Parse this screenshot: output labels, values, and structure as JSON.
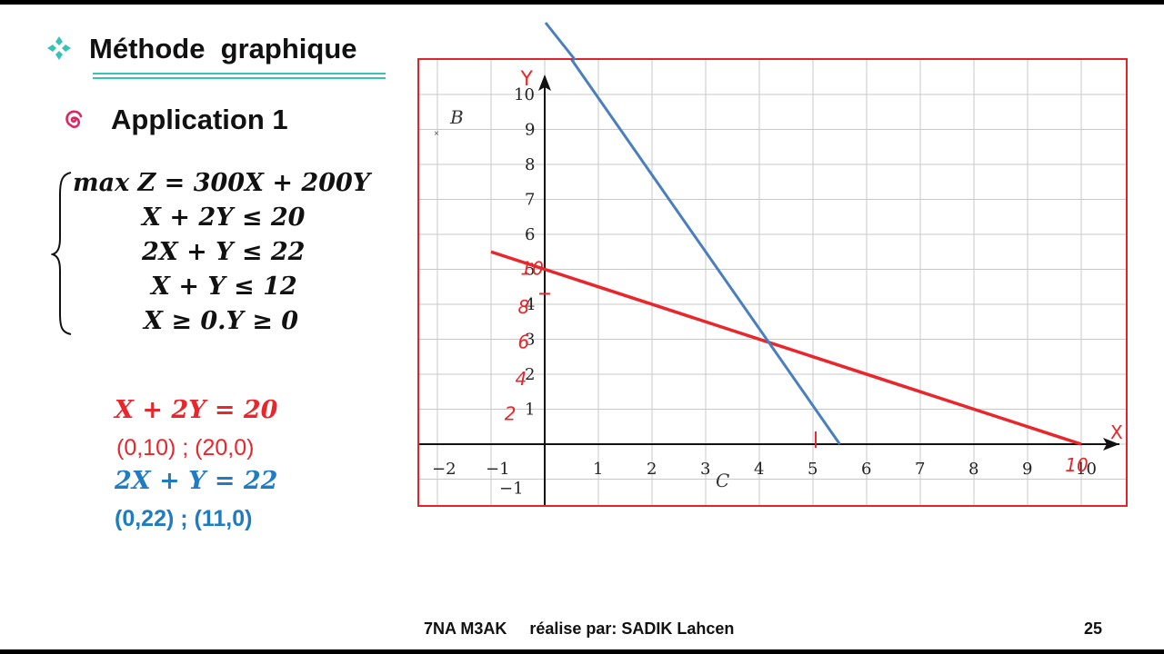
{
  "slide": {
    "title": "Méthode  graphique",
    "title_icon": "diamond-bullet-icon",
    "application_label": "Application 1",
    "application_icon": "swirl-bullet-icon",
    "accent_color": "#39c2b8",
    "red_color": "#e8262b",
    "blue_color": "#1f7cc2"
  },
  "system": {
    "objective": "max Z = 300X + 200Y",
    "constraints": [
      "X + 2Y ≤ 20",
      "2X + Y ≤ 22",
      "X + Y ≤ 12",
      "X ≥ 0.Y ≥ 0"
    ]
  },
  "lines": [
    {
      "equation": "X + 2Y = 20",
      "points": "(0,10) ; (20,0)",
      "color": "#e8262b"
    },
    {
      "equation": "2X + Y = 22",
      "points": "(0,22) ; (11,0)",
      "color": "#1f7cc2"
    }
  ],
  "chart_data": {
    "type": "line",
    "xlim": [
      -2,
      10
    ],
    "ylim": [
      -2,
      10
    ],
    "grid": true,
    "x_ticks": [
      "−2",
      "−1",
      "1",
      "2",
      "3",
      "4",
      "5",
      "6",
      "7",
      "8",
      "9",
      "10"
    ],
    "y_ticks": [
      "−1",
      "1",
      "2",
      "3",
      "4",
      "5",
      "6",
      "7",
      "8",
      "9",
      "10"
    ],
    "axis_label_x": "X",
    "axis_label_y": "Y",
    "point_labels": [
      "B",
      "C"
    ],
    "series": [
      {
        "color": "#e8262b",
        "x": [
          -1,
          10
        ],
        "y": [
          5.5,
          0
        ]
      },
      {
        "color": "#4a7fbf",
        "x": [
          0.5,
          5.5
        ],
        "y": [
          11,
          0
        ]
      }
    ],
    "handwritten_marks": [
      "10",
      "8",
      "6",
      "4",
      "2",
      "10"
    ]
  },
  "footer": {
    "text": "7NA M3AK     réalise par: SADIK Lahcen",
    "page_number": "25"
  }
}
